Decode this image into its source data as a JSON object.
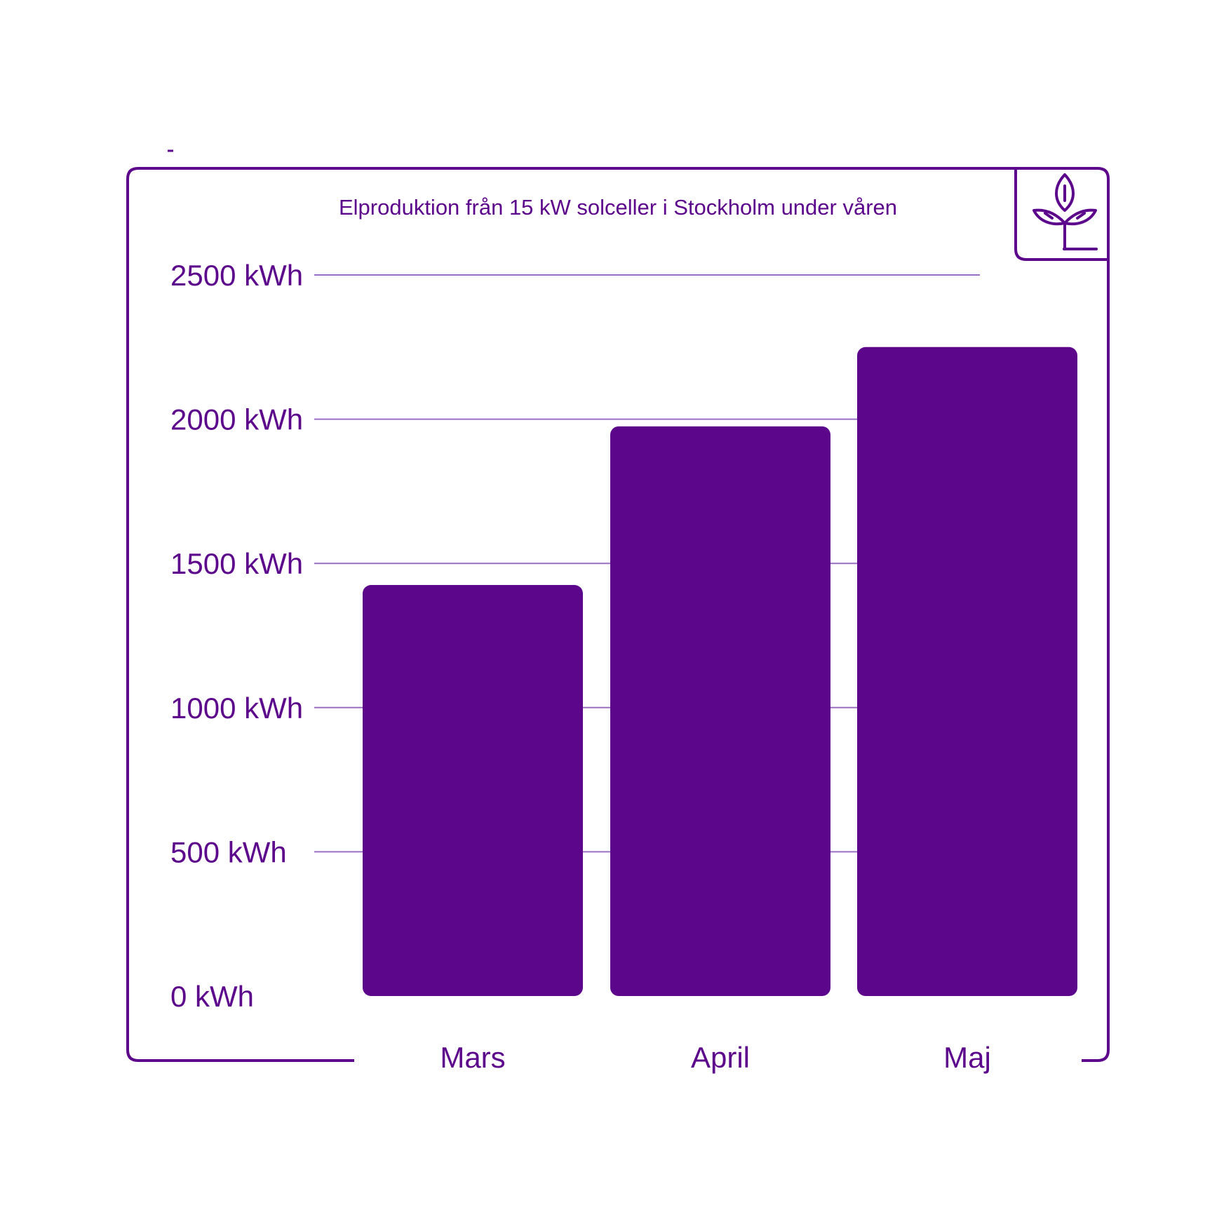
{
  "colors": {
    "accent": "#5c068c",
    "gridline": "#9b6fc4",
    "background": "#ffffff"
  },
  "logo_icon": "plant-sprout-icon",
  "chart_data": {
    "type": "bar",
    "title": "Elproduktion från 15 kW solceller i Stockholm under våren",
    "categories": [
      "Mars",
      "April",
      "Maj"
    ],
    "values": [
      1425,
      1975,
      2250
    ],
    "unit": "kWh",
    "ylim": [
      0,
      2500
    ],
    "yticks": [
      0,
      500,
      1000,
      1500,
      2000,
      2500
    ],
    "ytick_labels": [
      "0 kWh",
      "500 kWh",
      "1000 kWh",
      "1500 kWh",
      "2000 kWh",
      "2500 kWh"
    ],
    "grid": true,
    "xlabel": "",
    "ylabel": ""
  }
}
